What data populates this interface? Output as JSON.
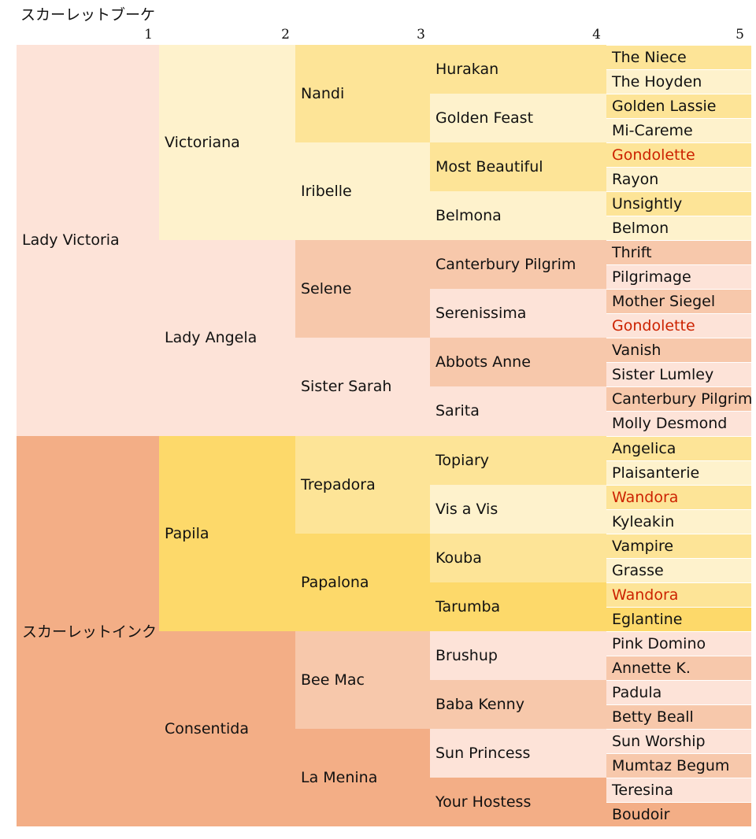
{
  "title": "スカーレットブーケ",
  "generations": [
    "1",
    "2",
    "3",
    "4",
    "5"
  ],
  "colors": {
    "bouquet_line_light": "#fde3d8",
    "bouquet_line_medium": "#f7c8ab",
    "bouquet_yellow_pale": "#fef2cc",
    "bouquet_yellow_mid": "#fde497",
    "ink_line_salmon": "#f3ae86",
    "ink_yellow_gold": "#fdd96a",
    "highlight_red": "#cc2200"
  },
  "pedigree": {
    "name": "スカーレットブーケ",
    "children": [
      {
        "name": "Lady Victoria",
        "color": "#fde3d8",
        "children": [
          {
            "name": "Victoriana",
            "color": "#fef2cc",
            "children": [
              {
                "name": "Nandi",
                "color": "#fde497",
                "children": [
                  {
                    "name": "Hurakan",
                    "color": "#fde497",
                    "children": [
                      {
                        "name": "The Niece",
                        "color": "#fde497"
                      },
                      {
                        "name": "The Hoyden",
                        "color": "#fef2cc"
                      }
                    ]
                  },
                  {
                    "name": "Golden Feast",
                    "color": "#fef2cc",
                    "children": [
                      {
                        "name": "Golden Lassie",
                        "color": "#fde497"
                      },
                      {
                        "name": "Mi-Careme",
                        "color": "#fef2cc"
                      }
                    ]
                  }
                ]
              },
              {
                "name": "Iribelle",
                "color": "#fef2cc",
                "children": [
                  {
                    "name": "Most Beautiful",
                    "color": "#fde497",
                    "children": [
                      {
                        "name": "Gondolette",
                        "color": "#fde497",
                        "red": true
                      },
                      {
                        "name": "Rayon",
                        "color": "#fef2cc"
                      }
                    ]
                  },
                  {
                    "name": "Belmona",
                    "color": "#fef2cc",
                    "children": [
                      {
                        "name": "Unsightly",
                        "color": "#fde497"
                      },
                      {
                        "name": "Belmon",
                        "color": "#fef2cc"
                      }
                    ]
                  }
                ]
              }
            ]
          },
          {
            "name": "Lady Angela",
            "color": "#fde3d8",
            "children": [
              {
                "name": "Selene",
                "color": "#f7c8ab",
                "children": [
                  {
                    "name": "Canterbury Pilgrim",
                    "color": "#f7c8ab",
                    "children": [
                      {
                        "name": "Thrift",
                        "color": "#f7c8ab"
                      },
                      {
                        "name": "Pilgrimage",
                        "color": "#fde3d8"
                      }
                    ]
                  },
                  {
                    "name": "Serenissima",
                    "color": "#fde3d8",
                    "children": [
                      {
                        "name": "Mother Siegel",
                        "color": "#f7c8ab"
                      },
                      {
                        "name": "Gondolette",
                        "color": "#fde3d8",
                        "red": true
                      }
                    ]
                  }
                ]
              },
              {
                "name": "Sister Sarah",
                "color": "#fde3d8",
                "children": [
                  {
                    "name": "Abbots Anne",
                    "color": "#f7c8ab",
                    "children": [
                      {
                        "name": "Vanish",
                        "color": "#f7c8ab"
                      },
                      {
                        "name": "Sister Lumley",
                        "color": "#fde3d8"
                      }
                    ]
                  },
                  {
                    "name": "Sarita",
                    "color": "#fde3d8",
                    "children": [
                      {
                        "name": "Canterbury Pilgrim",
                        "color": "#f7c8ab"
                      },
                      {
                        "name": "Molly Desmond",
                        "color": "#fde3d8"
                      }
                    ]
                  }
                ]
              }
            ]
          }
        ]
      },
      {
        "name": "スカーレットインク",
        "color": "#f3ae86",
        "children": [
          {
            "name": "Papila",
            "color": "#fdd96a",
            "children": [
              {
                "name": "Trepadora",
                "color": "#fde497",
                "children": [
                  {
                    "name": "Topiary",
                    "color": "#fde497",
                    "children": [
                      {
                        "name": "Angelica",
                        "color": "#fde497"
                      },
                      {
                        "name": "Plaisanterie",
                        "color": "#fef2cc"
                      }
                    ]
                  },
                  {
                    "name": "Vis a Vis",
                    "color": "#fef2cc",
                    "children": [
                      {
                        "name": "Wandora",
                        "color": "#fde497",
                        "red": true
                      },
                      {
                        "name": "Kyleakin",
                        "color": "#fef2cc"
                      }
                    ]
                  }
                ]
              },
              {
                "name": "Papalona",
                "color": "#fdd96a",
                "children": [
                  {
                    "name": "Kouba",
                    "color": "#fde497",
                    "children": [
                      {
                        "name": "Vampire",
                        "color": "#fde497"
                      },
                      {
                        "name": "Grasse",
                        "color": "#fef2cc"
                      }
                    ]
                  },
                  {
                    "name": "Tarumba",
                    "color": "#fdd96a",
                    "children": [
                      {
                        "name": "Wandora",
                        "color": "#fde497",
                        "red": true
                      },
                      {
                        "name": "Eglantine",
                        "color": "#fdd96a"
                      }
                    ]
                  }
                ]
              }
            ]
          },
          {
            "name": "Consentida",
            "color": "#f3ae86",
            "children": [
              {
                "name": "Bee Mac",
                "color": "#f7c8ab",
                "children": [
                  {
                    "name": "Brushup",
                    "color": "#fde3d8",
                    "children": [
                      {
                        "name": "Pink Domino",
                        "color": "#fde3d8"
                      },
                      {
                        "name": "Annette K.",
                        "color": "#f7c8ab"
                      }
                    ]
                  },
                  {
                    "name": "Baba Kenny",
                    "color": "#f7c8ab",
                    "children": [
                      {
                        "name": "Padula",
                        "color": "#fde3d8"
                      },
                      {
                        "name": "Betty Beall",
                        "color": "#f7c8ab"
                      }
                    ]
                  }
                ]
              },
              {
                "name": "La Menina",
                "color": "#f3ae86",
                "children": [
                  {
                    "name": "Sun Princess",
                    "color": "#fde3d8",
                    "children": [
                      {
                        "name": "Sun Worship",
                        "color": "#fde3d8"
                      },
                      {
                        "name": "Mumtaz Begum",
                        "color": "#f7c8ab"
                      }
                    ]
                  },
                  {
                    "name": "Your Hostess",
                    "color": "#f3ae86",
                    "children": [
                      {
                        "name": "Teresina",
                        "color": "#fde3d8"
                      },
                      {
                        "name": "Boudoir",
                        "color": "#f3ae86"
                      }
                    ]
                  }
                ]
              }
            ]
          }
        ]
      }
    ]
  }
}
